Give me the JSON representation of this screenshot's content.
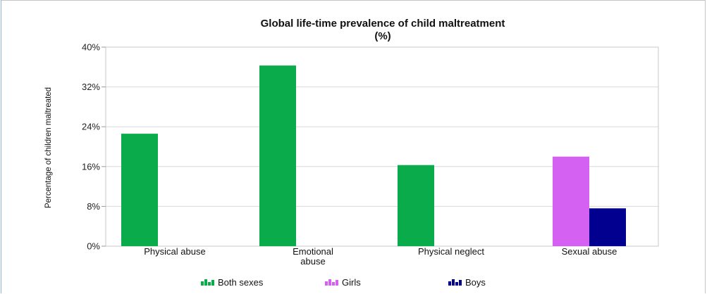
{
  "chart_data": {
    "type": "bar",
    "title": "Global life-time prevalence of child maltreatment (%)",
    "title_lines": [
      "Global life-time prevalence of child maltreatment",
      "(%)"
    ],
    "xlabel": "",
    "ylabel": "Percentage of children maltreated",
    "ylim": [
      0,
      40
    ],
    "yticks": [
      0,
      8,
      16,
      24,
      32,
      40
    ],
    "ytick_labels": [
      "0%",
      "8%",
      "16%",
      "24%",
      "32%",
      "40%"
    ],
    "grid": true,
    "legend_position": "bottom",
    "categories": [
      "Physical abuse",
      "Emotional abuse",
      "Physical neglect",
      "Sexual abuse"
    ],
    "category_label_lines": [
      [
        "Physical abuse"
      ],
      [
        "Emotional",
        "abuse"
      ],
      [
        "Physical neglect"
      ],
      [
        "Sexual abuse"
      ]
    ],
    "series": [
      {
        "name": "Both sexes",
        "color": "#0aab4a",
        "values": [
          22.6,
          36.3,
          16.3,
          null
        ]
      },
      {
        "name": "Girls",
        "color": "#d461f2",
        "values": [
          null,
          null,
          null,
          18.0
        ]
      },
      {
        "name": "Boys",
        "color": "#02008e",
        "values": [
          null,
          null,
          null,
          7.6
        ]
      }
    ]
  }
}
